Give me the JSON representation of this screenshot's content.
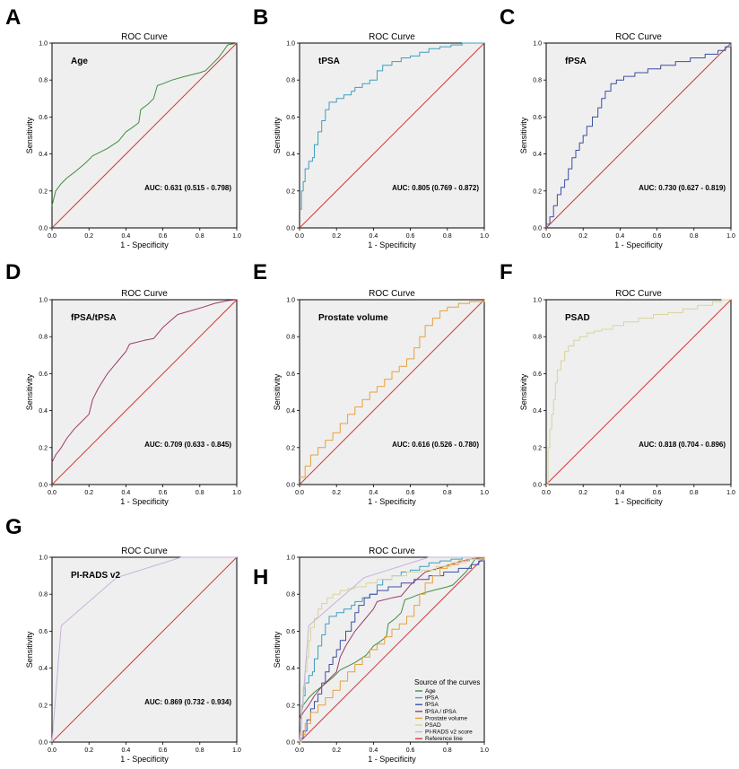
{
  "figure": {
    "letters": [
      "A",
      "B",
      "C",
      "D",
      "E",
      "F",
      "G",
      "H"
    ]
  },
  "chart_data": [
    {
      "id": "A",
      "type": "line",
      "title": "ROC Curve",
      "label": "Age",
      "auc_text": "AUC: 0.631 (0.515 - 0.798)",
      "xlabel": "1 - Specificity",
      "ylabel": "Sensitivity",
      "xlim": [
        0,
        1
      ],
      "ylim": [
        0,
        1
      ],
      "ticks": [
        "0.0",
        "0.2",
        "0.4",
        "0.6",
        "0.8",
        "1.0"
      ],
      "series": [
        {
          "name": "Age",
          "color": "#3f8f3f",
          "step": false,
          "x": [
            0,
            0.02,
            0.05,
            0.08,
            0.12,
            0.18,
            0.22,
            0.3,
            0.36,
            0.4,
            0.43,
            0.47,
            0.48,
            0.52,
            0.55,
            0.57,
            0.6,
            0.65,
            0.72,
            0.8,
            0.83,
            0.86,
            0.9,
            0.93,
            0.95,
            1.0
          ],
          "y": [
            0.12,
            0.2,
            0.24,
            0.27,
            0.3,
            0.35,
            0.39,
            0.43,
            0.47,
            0.52,
            0.54,
            0.57,
            0.64,
            0.67,
            0.7,
            0.77,
            0.78,
            0.8,
            0.82,
            0.84,
            0.85,
            0.88,
            0.92,
            0.96,
            0.99,
            1.0
          ]
        },
        {
          "name": "Reference line",
          "color": "#d63a3a",
          "step": false,
          "x": [
            0,
            1
          ],
          "y": [
            0,
            1
          ]
        }
      ]
    },
    {
      "id": "B",
      "type": "line",
      "title": "ROC Curve",
      "label": "tPSA",
      "auc_text": "AUC: 0.805 (0.769 - 0.872)",
      "xlabel": "1 - Specificity",
      "ylabel": "Sensitivity",
      "xlim": [
        0,
        1
      ],
      "ylim": [
        0,
        1
      ],
      "ticks": [
        "0.0",
        "0.2",
        "0.4",
        "0.6",
        "0.8",
        "1.0"
      ],
      "series": [
        {
          "name": "tPSA",
          "color": "#3e9fc0",
          "step": true,
          "x": [
            0,
            0.01,
            0.02,
            0.03,
            0.05,
            0.07,
            0.08,
            0.1,
            0.12,
            0.14,
            0.16,
            0.2,
            0.24,
            0.28,
            0.3,
            0.34,
            0.38,
            0.42,
            0.45,
            0.5,
            0.55,
            0.6,
            0.65,
            0.7,
            0.76,
            0.82,
            0.88,
            1.0
          ],
          "y": [
            0.1,
            0.2,
            0.25,
            0.32,
            0.36,
            0.38,
            0.45,
            0.52,
            0.58,
            0.64,
            0.68,
            0.7,
            0.72,
            0.74,
            0.76,
            0.78,
            0.8,
            0.85,
            0.88,
            0.9,
            0.92,
            0.93,
            0.95,
            0.97,
            0.98,
            0.99,
            1.0,
            1.0
          ]
        },
        {
          "name": "Reference line",
          "color": "#d63a3a",
          "step": false,
          "x": [
            0,
            1
          ],
          "y": [
            0,
            1
          ]
        }
      ]
    },
    {
      "id": "C",
      "type": "line",
      "title": "ROC Curve",
      "label": "fPSA",
      "auc_text": "AUC: 0.730 (0.627 - 0.819)",
      "xlabel": "1 - Specificity",
      "ylabel": "Sensitivity",
      "xlim": [
        0,
        1
      ],
      "ylim": [
        0,
        1
      ],
      "ticks": [
        "0.0",
        "0.2",
        "0.4",
        "0.6",
        "0.8",
        "1.0"
      ],
      "series": [
        {
          "name": "fPSA",
          "color": "#3d4fa0",
          "step": true,
          "x": [
            0,
            0.02,
            0.04,
            0.06,
            0.08,
            0.1,
            0.12,
            0.14,
            0.16,
            0.18,
            0.2,
            0.22,
            0.25,
            0.28,
            0.3,
            0.32,
            0.35,
            0.38,
            0.42,
            0.48,
            0.55,
            0.62,
            0.7,
            0.78,
            0.86,
            0.93,
            0.97,
            1.0
          ],
          "y": [
            0.02,
            0.06,
            0.12,
            0.18,
            0.22,
            0.26,
            0.32,
            0.38,
            0.42,
            0.46,
            0.5,
            0.55,
            0.6,
            0.65,
            0.7,
            0.74,
            0.78,
            0.8,
            0.82,
            0.84,
            0.86,
            0.88,
            0.9,
            0.92,
            0.94,
            0.96,
            0.98,
            1.0
          ]
        },
        {
          "name": "Reference line",
          "color": "#d63a3a",
          "step": false,
          "x": [
            0,
            1
          ],
          "y": [
            0,
            1
          ]
        }
      ]
    },
    {
      "id": "D",
      "type": "line",
      "title": "ROC Curve",
      "label": "fPSA/tPSA",
      "auc_text": "AUC: 0.709 (0.633 - 0.845)",
      "xlabel": "1 - Specificity",
      "ylabel": "Sensitivity",
      "xlim": [
        0,
        1
      ],
      "ylim": [
        0,
        1
      ],
      "ticks": [
        "0.0",
        "0.2",
        "0.4",
        "0.6",
        "0.8",
        "1.0"
      ],
      "series": [
        {
          "name": "fPSA / tPSA",
          "color": "#9b3a6e",
          "step": false,
          "x": [
            0,
            0.02,
            0.05,
            0.08,
            0.12,
            0.15,
            0.2,
            0.22,
            0.25,
            0.3,
            0.35,
            0.4,
            0.42,
            0.5,
            0.55,
            0.6,
            0.68,
            0.75,
            0.82,
            0.88,
            0.95,
            1.0
          ],
          "y": [
            0.12,
            0.16,
            0.2,
            0.25,
            0.3,
            0.33,
            0.38,
            0.46,
            0.52,
            0.6,
            0.66,
            0.72,
            0.76,
            0.78,
            0.79,
            0.85,
            0.92,
            0.94,
            0.96,
            0.98,
            0.995,
            1.0
          ]
        },
        {
          "name": "Reference line",
          "color": "#d63a3a",
          "step": false,
          "x": [
            0,
            1
          ],
          "y": [
            0,
            1
          ]
        }
      ]
    },
    {
      "id": "E",
      "type": "line",
      "title": "ROC Curve",
      "label": "Prostate volume",
      "auc_text": "AUC: 0.616 (0.526 - 0.780)",
      "xlabel": "1 - Specificity",
      "ylabel": "Sensitivity",
      "xlim": [
        0,
        1
      ],
      "ylim": [
        0,
        1
      ],
      "ticks": [
        "0.0",
        "0.2",
        "0.4",
        "0.6",
        "0.8",
        "1.0"
      ],
      "series": [
        {
          "name": "Prostate volume",
          "color": "#e8a13a",
          "step": true,
          "x": [
            0,
            0.03,
            0.06,
            0.1,
            0.14,
            0.18,
            0.22,
            0.26,
            0.3,
            0.34,
            0.38,
            0.42,
            0.46,
            0.5,
            0.54,
            0.58,
            0.62,
            0.65,
            0.68,
            0.72,
            0.76,
            0.8,
            0.86,
            0.92,
            1.0
          ],
          "y": [
            0.04,
            0.1,
            0.16,
            0.2,
            0.24,
            0.28,
            0.33,
            0.38,
            0.42,
            0.46,
            0.5,
            0.53,
            0.57,
            0.61,
            0.64,
            0.68,
            0.74,
            0.8,
            0.86,
            0.9,
            0.94,
            0.96,
            0.98,
            0.99,
            1.0
          ]
        },
        {
          "name": "Reference line",
          "color": "#d63a3a",
          "step": false,
          "x": [
            0,
            1
          ],
          "y": [
            0,
            1
          ]
        }
      ]
    },
    {
      "id": "F",
      "type": "line",
      "title": "ROC Curve",
      "label": "PSAD",
      "auc_text": "AUC: 0.818 (0.704 - 0.896)",
      "xlabel": "1 - Specificity",
      "ylabel": "Sensitivity",
      "xlim": [
        0,
        1
      ],
      "ylim": [
        0,
        1
      ],
      "ticks": [
        "0.0",
        "0.2",
        "0.4",
        "0.6",
        "0.8",
        "1.0"
      ],
      "series": [
        {
          "name": "PSAD",
          "color": "#d8d49a",
          "step": true,
          "x": [
            0,
            0.01,
            0.02,
            0.03,
            0.04,
            0.05,
            0.06,
            0.08,
            0.1,
            0.12,
            0.15,
            0.18,
            0.22,
            0.26,
            0.3,
            0.36,
            0.42,
            0.5,
            0.58,
            0.66,
            0.74,
            0.82,
            0.9,
            0.95,
            1.0
          ],
          "y": [
            0.0,
            0.2,
            0.3,
            0.38,
            0.46,
            0.55,
            0.62,
            0.67,
            0.72,
            0.75,
            0.78,
            0.8,
            0.82,
            0.83,
            0.84,
            0.86,
            0.88,
            0.9,
            0.92,
            0.93,
            0.95,
            0.97,
            0.99,
            1.0,
            1.0
          ]
        },
        {
          "name": "Reference line",
          "color": "#d63a3a",
          "step": false,
          "x": [
            0,
            1
          ],
          "y": [
            0,
            1
          ]
        }
      ]
    },
    {
      "id": "G",
      "type": "line",
      "title": "ROC Curve",
      "label": "PI-RADS v2",
      "auc_text": "AUC: 0.869 (0.732 - 0.934)",
      "xlabel": "1 - Specificity",
      "ylabel": "Sensitivity",
      "xlim": [
        0,
        1
      ],
      "ylim": [
        0,
        1
      ],
      "ticks": [
        "0.0",
        "0.2",
        "0.4",
        "0.6",
        "0.8",
        "1.0"
      ],
      "series": [
        {
          "name": "PI-RADS v2 score",
          "color": "#c7b3dc",
          "step": false,
          "x": [
            0,
            0.05,
            0.35,
            0.7,
            1.0
          ],
          "y": [
            0,
            0.63,
            0.89,
            1.0,
            1.0
          ]
        },
        {
          "name": "Reference line",
          "color": "#d63a3a",
          "step": false,
          "x": [
            0,
            1
          ],
          "y": [
            0,
            1
          ]
        }
      ]
    },
    {
      "id": "H",
      "type": "line",
      "title": "ROC Curve",
      "xlabel": "1 - Specificity",
      "ylabel": "Sensitivity",
      "xlim": [
        0,
        1
      ],
      "ylim": [
        0,
        1
      ],
      "ticks": [
        "0.0",
        "0.2",
        "0.4",
        "0.6",
        "0.8",
        "1.0"
      ],
      "legend_title": "Source of the curves",
      "legend_position": "bottom-right",
      "series_refs": [
        "A",
        "B",
        "C",
        "D",
        "E",
        "F",
        "G"
      ],
      "legend": [
        "Age",
        "tPSA",
        "fPSA",
        "fPSA / tPSA",
        "Prostate volume",
        "PSAD",
        "PI-RADS v2 score",
        "Reference line"
      ]
    }
  ]
}
